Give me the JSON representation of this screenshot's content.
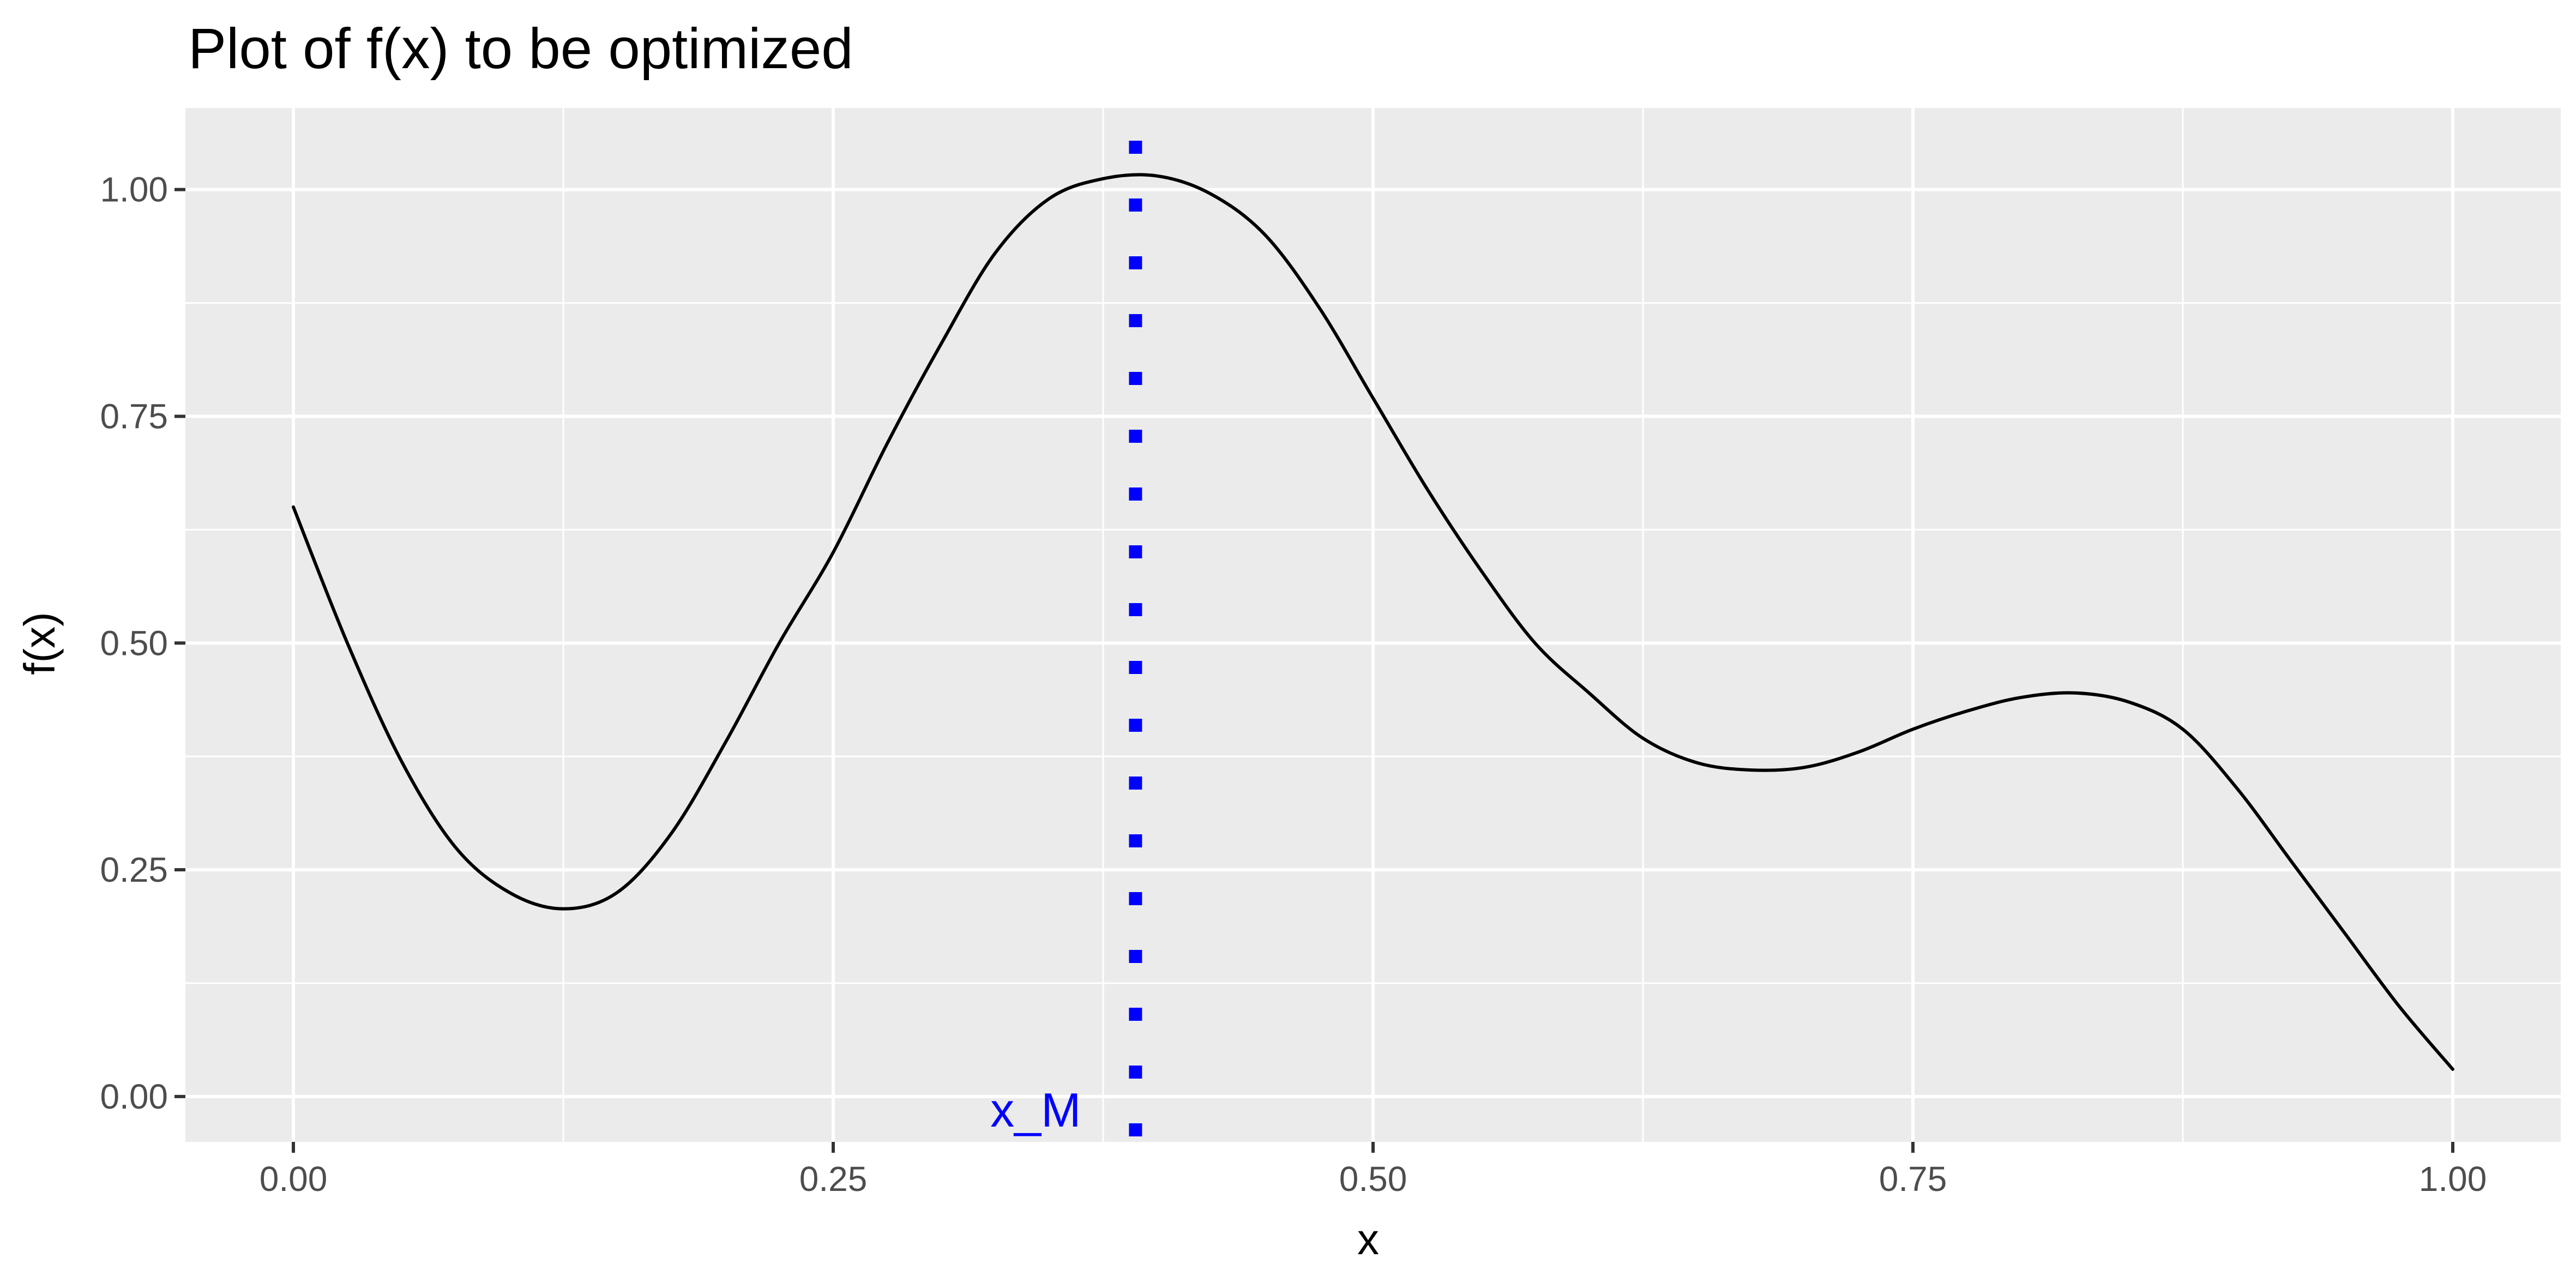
{
  "chart_data": {
    "type": "line",
    "title": "Plot of f(x) to be optimized",
    "xlabel": "x",
    "ylabel": "f(x)",
    "xlim": [
      -0.05,
      1.05
    ],
    "ylim": [
      -0.05,
      1.09
    ],
    "x_ticks": [
      0,
      0.25,
      0.5,
      0.75,
      1
    ],
    "x_tick_labels": [
      "0.00",
      "0.25",
      "0.50",
      "0.75",
      "1.00"
    ],
    "y_ticks": [
      0,
      0.25,
      0.5,
      0.75,
      1
    ],
    "y_tick_labels": [
      "0.00",
      "0.25",
      "0.50",
      "0.75",
      "1.00"
    ],
    "grid": true,
    "panel_background": "#ebebeb",
    "series": [
      {
        "color": "#000000",
        "x": [
          0,
          0.025,
          0.05,
          0.075,
          0.1,
          0.125,
          0.15,
          0.175,
          0.2,
          0.225,
          0.25,
          0.275,
          0.3,
          0.325,
          0.35,
          0.375,
          0.4,
          0.425,
          0.45,
          0.475,
          0.5,
          0.525,
          0.55,
          0.575,
          0.6,
          0.625,
          0.65,
          0.675,
          0.7,
          0.725,
          0.75,
          0.775,
          0.8,
          0.825,
          0.85,
          0.875,
          0.9,
          0.925,
          0.95,
          0.975,
          1.0
        ],
        "y": [
          0.65,
          0.5,
          0.37,
          0.275,
          0.225,
          0.207,
          0.225,
          0.29,
          0.39,
          0.5,
          0.6,
          0.72,
          0.83,
          0.93,
          0.99,
          1.012,
          1.015,
          0.995,
          0.95,
          0.87,
          0.77,
          0.67,
          0.58,
          0.5,
          0.445,
          0.395,
          0.368,
          0.36,
          0.363,
          0.38,
          0.405,
          0.425,
          0.44,
          0.445,
          0.435,
          0.405,
          0.34,
          0.26,
          0.18,
          0.1,
          0.03
        ]
      }
    ],
    "annotations": [
      {
        "type": "vline",
        "x": 0.39,
        "style": "dotted",
        "color": "#0000ff",
        "label": "x_M"
      }
    ]
  }
}
